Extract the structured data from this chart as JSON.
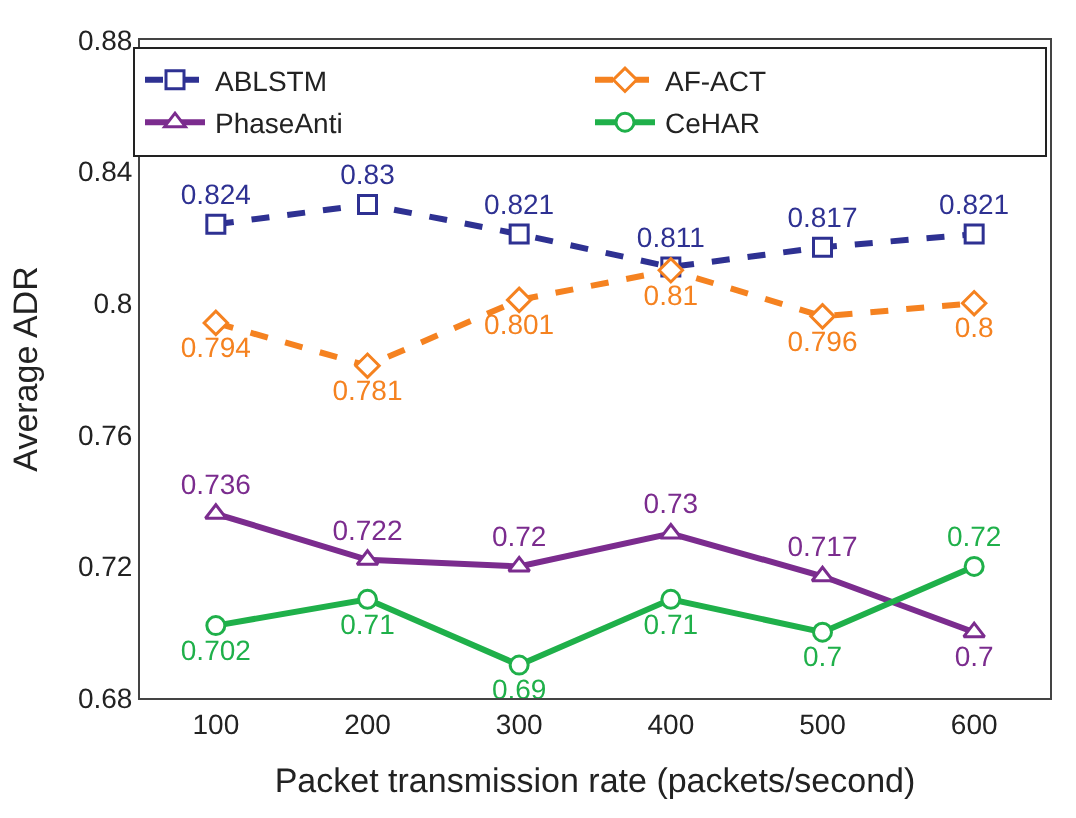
{
  "chart_data": {
    "type": "line",
    "xlabel": "Packet transmission rate (packets/second)",
    "ylabel": "Average ADR",
    "categories": [
      "100",
      "200",
      "300",
      "400",
      "500",
      "600"
    ],
    "ylim": [
      0.68,
      0.88
    ],
    "yticks": [
      0.68,
      0.72,
      0.76,
      0.8,
      0.84,
      0.88
    ],
    "legend": "top",
    "data_labels": true,
    "series": [
      {
        "name": "ABLSTM",
        "color": "#2e3192",
        "marker": "square",
        "line_style": "dashed",
        "values": [
          0.824,
          0.83,
          0.821,
          0.811,
          0.817,
          0.821
        ]
      },
      {
        "name": "AF-ACT",
        "color": "#f58220",
        "marker": "diamond",
        "line_style": "dashed",
        "values": [
          0.794,
          0.781,
          0.801,
          0.81,
          0.796,
          0.8
        ]
      },
      {
        "name": "PhaseAnti",
        "color": "#7b2c8e",
        "marker": "triangle",
        "line_style": "solid",
        "values": [
          0.736,
          0.722,
          0.72,
          0.73,
          0.717,
          0.7
        ]
      },
      {
        "name": "CeHAR",
        "color": "#1fb04a",
        "marker": "circle",
        "line_style": "solid",
        "values": [
          0.702,
          0.71,
          0.69,
          0.71,
          0.7,
          0.72
        ]
      }
    ]
  }
}
